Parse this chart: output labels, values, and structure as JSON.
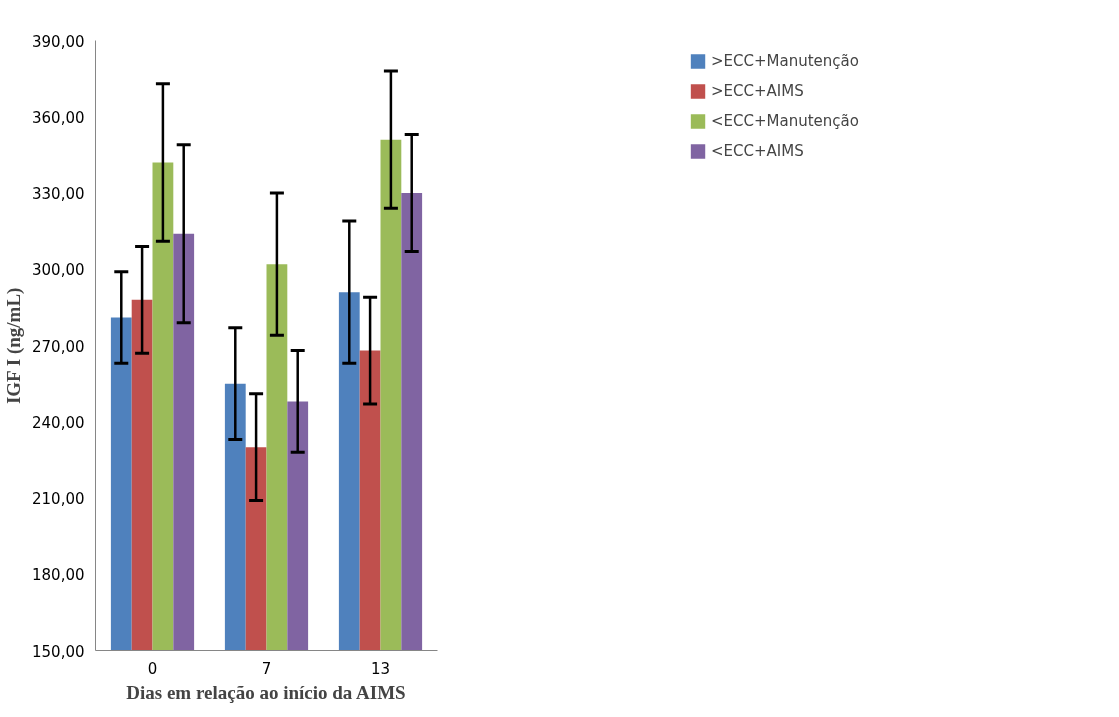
{
  "chart_data": {
    "type": "bar",
    "xlabel": "Dias em relação ao início da AIMS",
    "ylabel": "IGF I (ng/mL)",
    "categories": [
      "0",
      "7",
      "13"
    ],
    "series": [
      {
        "name": ">ECC+Manutenção",
        "color": "#4f81bd",
        "values": [
          281,
          255,
          291
        ],
        "errors": [
          18,
          22,
          28
        ]
      },
      {
        "name": ">ECC+AIMS",
        "color": "#c0504d",
        "values": [
          288,
          230,
          268
        ],
        "errors": [
          21,
          21,
          21
        ]
      },
      {
        "name": "<ECC+Manutenção",
        "color": "#9bbb59",
        "values": [
          342,
          302,
          351
        ],
        "errors": [
          31,
          28,
          27
        ]
      },
      {
        "name": "<ECC+AIMS",
        "color": "#8064a2",
        "values": [
          314,
          248,
          330
        ],
        "errors": [
          35,
          20,
          23
        ]
      }
    ],
    "ylim": [
      150,
      390
    ],
    "yticks": [
      {
        "value": 150,
        "label": "150,00"
      },
      {
        "value": 180,
        "label": "180,00"
      },
      {
        "value": 210,
        "label": "210,00"
      },
      {
        "value": 240,
        "label": "240,00"
      },
      {
        "value": 270,
        "label": "270,00"
      },
      {
        "value": 300,
        "label": "300,00"
      },
      {
        "value": 330,
        "label": "330,00"
      },
      {
        "value": 360,
        "label": "360,00"
      },
      {
        "value": 390,
        "label": "390,00"
      }
    ],
    "legend": "top right",
    "grid": false
  }
}
